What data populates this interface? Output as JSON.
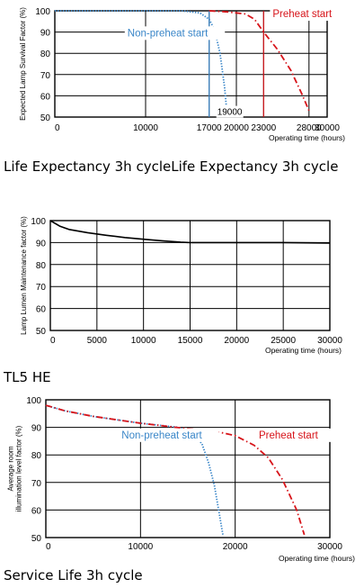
{
  "chart_data": [
    {
      "type": "line",
      "caption": "Life Expectancy 3h cycleLife Expectancy 3h cycle",
      "ylabel": "Expected Lamp Survival Factor (%)",
      "xlabel": "Operating time (hours)",
      "xlim": [
        0,
        30000
      ],
      "ylim": [
        50,
        100
      ],
      "xticks": [
        {
          "v": 0,
          "label": "0"
        },
        {
          "v": 10000,
          "label": "10000"
        },
        {
          "v": 17000,
          "label": "17000"
        },
        {
          "v": 20000,
          "label": "20000"
        },
        {
          "v": 23000,
          "label": "23000"
        },
        {
          "v": 28000,
          "label": "28000"
        },
        {
          "v": 30000,
          "label": "30000"
        }
      ],
      "yticks": [
        50,
        60,
        70,
        80,
        90,
        100
      ],
      "grid": true,
      "series": [
        {
          "name": "Non-preheat start",
          "color": "#3a86c8",
          "style": "dotted",
          "x": [
            0,
            14000,
            16000,
            17000,
            17600,
            18200,
            18700,
            19000
          ],
          "y": [
            100,
            100,
            99,
            96,
            91,
            80,
            64,
            50
          ]
        },
        {
          "name": "Preheat start",
          "color": "#d7141a",
          "style": "dashdot",
          "x": [
            17000,
            19000,
            21000,
            22000,
            23000,
            24500,
            26000,
            27200,
            28000
          ],
          "y": [
            100,
            99.5,
            98.5,
            96,
            90,
            82,
            72,
            61,
            53
          ]
        }
      ],
      "markers": [
        {
          "name": "non-preheat-marker",
          "x": 17000,
          "color": "#3a86c8"
        },
        {
          "name": "preheat-marker",
          "x": 23000,
          "color": "#d7141a"
        }
      ],
      "annotations": [
        {
          "name": "non-preheat-start-label",
          "text": "Non-preheat start",
          "color": "#3a86c8",
          "x": 8000,
          "y": 88
        },
        {
          "name": "preheat-start-label",
          "text": "Preheat start",
          "color": "#d7141a",
          "x": 24000,
          "y": 97
        },
        {
          "name": "19000-label",
          "text": "19000",
          "color": "#000000",
          "x": 17000,
          "y": 51
        }
      ]
    },
    {
      "type": "line",
      "caption": "TL5 HE",
      "ylabel": "Lamp Lumen Maintenance factor (%)",
      "xlabel": "Operating time (hours)",
      "xlim": [
        0,
        30000
      ],
      "ylim": [
        50,
        100
      ],
      "xticks": [
        {
          "v": 0,
          "label": "0"
        },
        {
          "v": 5000,
          "label": "5000"
        },
        {
          "v": 10000,
          "label": "10000"
        },
        {
          "v": 15000,
          "label": "15000"
        },
        {
          "v": 20000,
          "label": "20000"
        },
        {
          "v": 25000,
          "label": "25000"
        },
        {
          "v": 30000,
          "label": "30000"
        }
      ],
      "yticks": [
        50,
        60,
        70,
        80,
        90,
        100
      ],
      "grid": true,
      "series": [
        {
          "name": "",
          "color": "#000000",
          "style": "solid",
          "x": [
            0,
            1000,
            2000,
            4000,
            6000,
            8000,
            10000,
            12000,
            14000,
            15000,
            20000,
            25000,
            30000
          ],
          "y": [
            100,
            97.5,
            96,
            94.5,
            93.3,
            92.3,
            91.5,
            90.8,
            90.2,
            90,
            90,
            90,
            89.8
          ]
        }
      ],
      "markers": [],
      "annotations": []
    },
    {
      "type": "line",
      "caption": "Service Life 3h cycle",
      "ylabel": "Average room illumination level factor (%)",
      "xlabel": "Operating time (hours)",
      "xlim": [
        0,
        30000
      ],
      "ylim": [
        50,
        100
      ],
      "xticks": [
        {
          "v": 0,
          "label": "0"
        },
        {
          "v": 10000,
          "label": "10000"
        },
        {
          "v": 20000,
          "label": "20000"
        },
        {
          "v": 30000,
          "label": "30000"
        }
      ],
      "yticks": [
        50,
        60,
        70,
        80,
        90,
        100
      ],
      "grid": true,
      "series": [
        {
          "name": "Non-preheat start",
          "color": "#3a86c8",
          "style": "dotted",
          "x": [
            0,
            2000,
            5000,
            10000,
            14000,
            15500,
            16500,
            17200,
            17800,
            18300,
            18700
          ],
          "y": [
            98,
            96,
            94,
            91.5,
            90,
            88,
            84,
            77,
            69,
            59,
            51
          ]
        },
        {
          "name": "Preheat start",
          "color": "#d7141a",
          "style": "dashdot",
          "x": [
            0,
            2000,
            5000,
            10000,
            15000,
            18000,
            20000,
            22000,
            23500,
            25000,
            26500,
            27300
          ],
          "y": [
            98,
            96,
            94,
            91.5,
            89.5,
            88.5,
            87,
            83.5,
            79,
            71,
            60,
            51
          ]
        }
      ],
      "markers": [],
      "annotations": [
        {
          "name": "non-preheat-start-label",
          "text": "Non-preheat start",
          "color": "#3a86c8",
          "x": 8000,
          "y": 86
        },
        {
          "name": "preheat-start-label",
          "text": "Preheat start",
          "color": "#d7141a",
          "x": 22500,
          "y": 86
        }
      ]
    }
  ]
}
